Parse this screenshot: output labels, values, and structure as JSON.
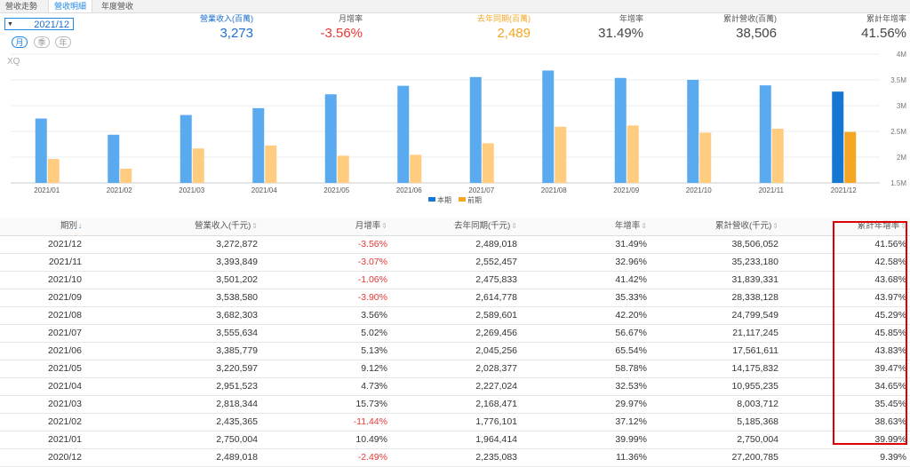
{
  "tabs": [
    {
      "label": "營收走勢",
      "active": false
    },
    {
      "label": "營收明細",
      "active": true
    },
    {
      "label": "年度營收",
      "active": false
    }
  ],
  "period": {
    "value": "2021/12"
  },
  "granularity": [
    {
      "label": "月",
      "active": true
    },
    {
      "label": "季",
      "active": false
    },
    {
      "label": "年",
      "active": false
    }
  ],
  "stats": [
    {
      "label": "營業收入(百萬)",
      "value": "3,273",
      "label_color": "#1e6fd0",
      "value_color": "#1e6fd0"
    },
    {
      "label": "月增率",
      "value": "-3.56%",
      "label_color": "#555555",
      "value_color": "#e53935"
    },
    {
      "label": "去年同期(百萬)",
      "value": "2,489",
      "label_color": "#f5a623",
      "value_color": "#f5a623"
    },
    {
      "label": "年增率",
      "value": "31.49%",
      "label_color": "#555555",
      "value_color": "#444444"
    },
    {
      "label": "累計營收(百萬)",
      "value": "38,506",
      "label_color": "#555555",
      "value_color": "#444444"
    },
    {
      "label": "累計年增率",
      "value": "41.56%",
      "label_color": "#555555",
      "value_color": "#444444"
    }
  ],
  "chart_data": {
    "type": "bar",
    "watermark": "XQ",
    "categories": [
      "2021/01",
      "2021/02",
      "2021/03",
      "2021/04",
      "2021/05",
      "2021/06",
      "2021/07",
      "2021/08",
      "2021/09",
      "2021/10",
      "2021/11",
      "2021/12"
    ],
    "series": [
      {
        "name": "本期",
        "values": [
          2750004,
          2435365,
          2818344,
          2951523,
          3220597,
          3385779,
          3555634,
          3682303,
          3538580,
          3501202,
          3393849,
          3272872
        ]
      },
      {
        "name": "前期",
        "values": [
          1964414,
          1776101,
          2168471,
          2227024,
          2028377,
          2045256,
          2269456,
          2589601,
          2614778,
          2475833,
          2552457,
          2489018
        ]
      }
    ],
    "y_ticks": [
      {
        "value": 1500000,
        "label": "1.5M"
      },
      {
        "value": 2000000,
        "label": "2M"
      },
      {
        "value": 2500000,
        "label": "2.5M"
      },
      {
        "value": 3000000,
        "label": "3M"
      },
      {
        "value": 3500000,
        "label": "3.5M"
      },
      {
        "value": 4000000,
        "label": "4M"
      }
    ],
    "ylim": [
      1500000,
      4000000
    ],
    "colors": {
      "current": "#5aaaf0",
      "previous": "#ffcc80",
      "current_selected": "#1677d2",
      "previous_selected": "#f5a623"
    },
    "selected_category": "2021/12",
    "legend": {
      "position": "bottom-center",
      "items": [
        "本期",
        "前期"
      ]
    }
  },
  "table": {
    "headers": [
      "期別",
      "營業收入(千元)",
      "月增率",
      "去年同期(千元)",
      "年增率",
      "累計營收(千元)",
      "累計年增率"
    ],
    "sort_column": 0,
    "rows": [
      {
        "period": "2021/12",
        "revenue": "3,272,872",
        "mom": "-3.56%",
        "last_year": "2,489,018",
        "yoy": "31.49%",
        "cum_revenue": "38,506,052",
        "cum_yoy": "41.56%"
      },
      {
        "period": "2021/11",
        "revenue": "3,393,849",
        "mom": "-3.07%",
        "last_year": "2,552,457",
        "yoy": "32.96%",
        "cum_revenue": "35,233,180",
        "cum_yoy": "42.58%"
      },
      {
        "period": "2021/10",
        "revenue": "3,501,202",
        "mom": "-1.06%",
        "last_year": "2,475,833",
        "yoy": "41.42%",
        "cum_revenue": "31,839,331",
        "cum_yoy": "43.68%"
      },
      {
        "period": "2021/09",
        "revenue": "3,538,580",
        "mom": "-3.90%",
        "last_year": "2,614,778",
        "yoy": "35.33%",
        "cum_revenue": "28,338,128",
        "cum_yoy": "43.97%"
      },
      {
        "period": "2021/08",
        "revenue": "3,682,303",
        "mom": "3.56%",
        "last_year": "2,589,601",
        "yoy": "42.20%",
        "cum_revenue": "24,799,549",
        "cum_yoy": "45.29%"
      },
      {
        "period": "2021/07",
        "revenue": "3,555,634",
        "mom": "5.02%",
        "last_year": "2,269,456",
        "yoy": "56.67%",
        "cum_revenue": "21,117,245",
        "cum_yoy": "45.85%"
      },
      {
        "period": "2021/06",
        "revenue": "3,385,779",
        "mom": "5.13%",
        "last_year": "2,045,256",
        "yoy": "65.54%",
        "cum_revenue": "17,561,611",
        "cum_yoy": "43.83%"
      },
      {
        "period": "2021/05",
        "revenue": "3,220,597",
        "mom": "9.12%",
        "last_year": "2,028,377",
        "yoy": "58.78%",
        "cum_revenue": "14,175,832",
        "cum_yoy": "39.47%"
      },
      {
        "period": "2021/04",
        "revenue": "2,951,523",
        "mom": "4.73%",
        "last_year": "2,227,024",
        "yoy": "32.53%",
        "cum_revenue": "10,955,235",
        "cum_yoy": "34.65%"
      },
      {
        "period": "2021/03",
        "revenue": "2,818,344",
        "mom": "15.73%",
        "last_year": "2,168,471",
        "yoy": "29.97%",
        "cum_revenue": "8,003,712",
        "cum_yoy": "35.45%"
      },
      {
        "period": "2021/02",
        "revenue": "2,435,365",
        "mom": "-11.44%",
        "last_year": "1,776,101",
        "yoy": "37.12%",
        "cum_revenue": "5,185,368",
        "cum_yoy": "38.63%"
      },
      {
        "period": "2021/01",
        "revenue": "2,750,004",
        "mom": "10.49%",
        "last_year": "1,964,414",
        "yoy": "39.99%",
        "cum_revenue": "2,750,004",
        "cum_yoy": "39.99%"
      },
      {
        "period": "2020/12",
        "revenue": "2,489,018",
        "mom": "-2.49%",
        "last_year": "2,235,083",
        "yoy": "11.36%",
        "cum_revenue": "27,200,785",
        "cum_yoy": "9.39%"
      }
    ]
  },
  "highlight": {
    "column": "累計年增率",
    "color": "#e00000"
  },
  "icons": {
    "dropdown": "caret-down-icon",
    "sort": "sort-icon",
    "sort_active": "sort-desc-icon"
  }
}
